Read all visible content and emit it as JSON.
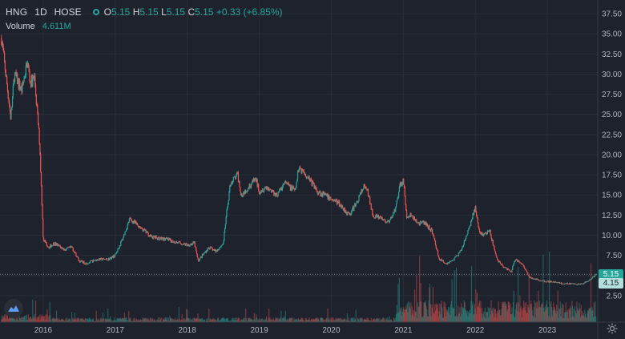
{
  "header": {
    "symbol": "HNG",
    "interval": "1D",
    "exchange": "HOSE",
    "open_label": "O",
    "open": "5.15",
    "high_label": "H",
    "high": "5.15",
    "low_label": "L",
    "low": "5.15",
    "close_label": "C",
    "close": "5.15",
    "change": "+0.33 (+6.85%)"
  },
  "volume_legend": {
    "label": "Volume",
    "value": "4.611M"
  },
  "price_badges": {
    "last": "5.15",
    "secondary": "4.15"
  },
  "colors": {
    "background": "#1e222d",
    "grid": "#2a2e39",
    "up": "#26a69a",
    "down": "#ef5350",
    "text": "#d1d4dc",
    "badge": "#26a69a"
  },
  "icons": {
    "logo": "tradingview-logo-icon",
    "settings": "gear-icon"
  },
  "chart_data": {
    "type": "candlestick",
    "y_axis_ticks": [
      "37.50",
      "35.00",
      "32.50",
      "30.00",
      "27.50",
      "25.00",
      "22.50",
      "20.00",
      "17.50",
      "15.00",
      "12.50",
      "10.00",
      "7.50",
      "5.00",
      "2.50"
    ],
    "x_axis_ticks": [
      "2016",
      "2017",
      "2018",
      "2019",
      "2020",
      "2021",
      "2022",
      "2023"
    ],
    "ylim": [
      0,
      39
    ],
    "xlim": [
      2015.4,
      2023.7
    ],
    "price_path": [
      [
        2015.42,
        34.5
      ],
      [
        2015.5,
        28.5
      ],
      [
        2015.55,
        24.5
      ],
      [
        2015.6,
        30.0
      ],
      [
        2015.7,
        28.0
      ],
      [
        2015.78,
        31.5
      ],
      [
        2015.82,
        29.0
      ],
      [
        2015.88,
        29.5
      ],
      [
        2015.95,
        21.5
      ],
      [
        2016.0,
        9.5
      ],
      [
        2016.08,
        8.5
      ],
      [
        2016.15,
        9.0
      ],
      [
        2016.3,
        8.2
      ],
      [
        2016.4,
        8.5
      ],
      [
        2016.5,
        6.8
      ],
      [
        2016.6,
        6.5
      ],
      [
        2016.75,
        7.0
      ],
      [
        2016.9,
        7.0
      ],
      [
        2017.0,
        7.5
      ],
      [
        2017.1,
        9.5
      ],
      [
        2017.2,
        12.0
      ],
      [
        2017.35,
        11.0
      ],
      [
        2017.5,
        9.8
      ],
      [
        2017.7,
        9.5
      ],
      [
        2017.9,
        9.0
      ],
      [
        2018.0,
        8.8
      ],
      [
        2018.1,
        9.0
      ],
      [
        2018.15,
        6.8
      ],
      [
        2018.3,
        8.5
      ],
      [
        2018.4,
        8.0
      ],
      [
        2018.5,
        9.0
      ],
      [
        2018.55,
        13.0
      ],
      [
        2018.6,
        16.5
      ],
      [
        2018.7,
        17.5
      ],
      [
        2018.75,
        15.0
      ],
      [
        2018.85,
        16.0
      ],
      [
        2018.95,
        17.0
      ],
      [
        2019.0,
        15.5
      ],
      [
        2019.1,
        16.0
      ],
      [
        2019.25,
        15.0
      ],
      [
        2019.35,
        16.5
      ],
      [
        2019.5,
        15.5
      ],
      [
        2019.55,
        18.5
      ],
      [
        2019.6,
        18.0
      ],
      [
        2019.7,
        17.0
      ],
      [
        2019.8,
        15.5
      ],
      [
        2019.9,
        15.0
      ],
      [
        2020.0,
        14.5
      ],
      [
        2020.1,
        14.0
      ],
      [
        2020.2,
        13.0
      ],
      [
        2020.25,
        12.5
      ],
      [
        2020.35,
        14.0
      ],
      [
        2020.45,
        16.0
      ],
      [
        2020.5,
        15.5
      ],
      [
        2020.58,
        12.5
      ],
      [
        2020.7,
        12.0
      ],
      [
        2020.8,
        11.5
      ],
      [
        2020.9,
        13.5
      ],
      [
        2020.95,
        16.0
      ],
      [
        2021.0,
        17.0
      ],
      [
        2021.05,
        12.0
      ],
      [
        2021.1,
        12.5
      ],
      [
        2021.2,
        11.5
      ],
      [
        2021.3,
        11.5
      ],
      [
        2021.4,
        10.5
      ],
      [
        2021.5,
        7.0
      ],
      [
        2021.6,
        6.5
      ],
      [
        2021.7,
        7.0
      ],
      [
        2021.8,
        8.0
      ],
      [
        2021.9,
        10.5
      ],
      [
        2022.0,
        13.5
      ],
      [
        2022.05,
        10.5
      ],
      [
        2022.1,
        10.0
      ],
      [
        2022.2,
        10.5
      ],
      [
        2022.3,
        7.0
      ],
      [
        2022.4,
        6.0
      ],
      [
        2022.5,
        5.5
      ],
      [
        2022.55,
        7.0
      ],
      [
        2022.65,
        6.5
      ],
      [
        2022.75,
        4.8
      ],
      [
        2022.85,
        4.5
      ],
      [
        2022.95,
        4.3
      ],
      [
        2023.1,
        4.2
      ],
      [
        2023.2,
        4.0
      ],
      [
        2023.3,
        4.0
      ],
      [
        2023.4,
        3.9
      ],
      [
        2023.5,
        4.0
      ],
      [
        2023.6,
        4.5
      ],
      [
        2023.68,
        5.15
      ]
    ],
    "volume_note": "volume histogram rendered at bottom, heavier from 2021 onward"
  }
}
